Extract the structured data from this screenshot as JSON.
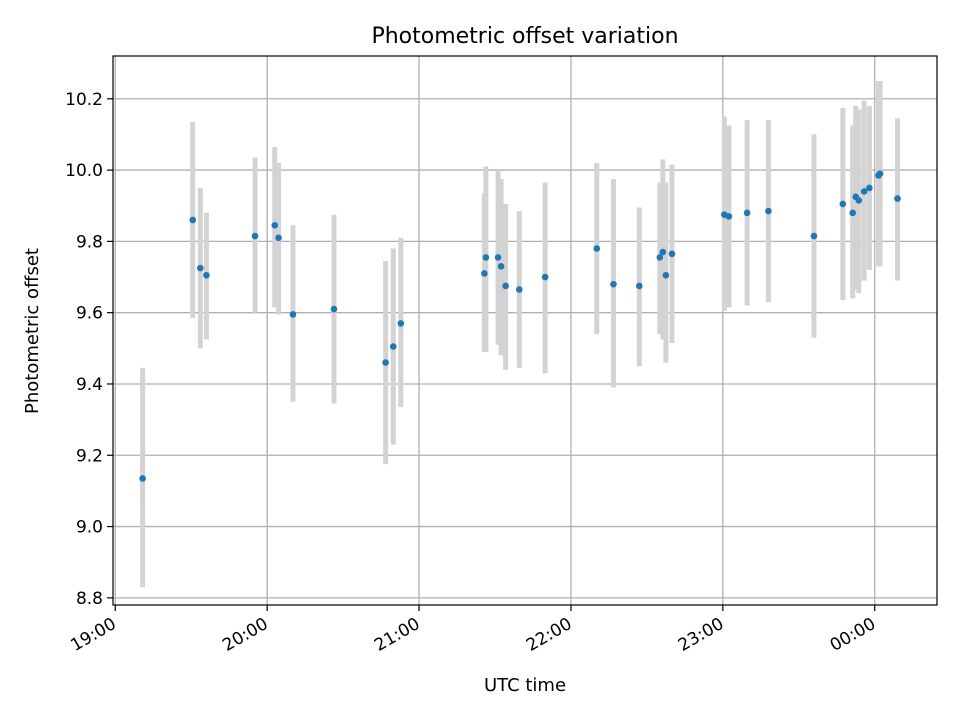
{
  "chart_data": {
    "type": "scatter",
    "title": "Photometric offset variation",
    "xlabel": "UTC time",
    "ylabel": "Photometric offset",
    "x_unit": "hours (UTC, continuing past midnight)",
    "xlim": [
      18.985,
      24.41
    ],
    "ylim": [
      8.78,
      10.32
    ],
    "x_ticks": [
      {
        "value": 19,
        "label": "19:00"
      },
      {
        "value": 20,
        "label": "20:00"
      },
      {
        "value": 21,
        "label": "21:00"
      },
      {
        "value": 22,
        "label": "22:00"
      },
      {
        "value": 23,
        "label": "23:00"
      },
      {
        "value": 24,
        "label": "00:00"
      }
    ],
    "y_ticks": [
      {
        "value": 8.8,
        "label": "8.8"
      },
      {
        "value": 9.0,
        "label": "9.0"
      },
      {
        "value": 9.2,
        "label": "9.2"
      },
      {
        "value": 9.4,
        "label": "9.4"
      },
      {
        "value": 9.6,
        "label": "9.6"
      },
      {
        "value": 9.8,
        "label": "9.8"
      },
      {
        "value": 10.0,
        "label": "10.0"
      },
      {
        "value": 10.2,
        "label": "10.2"
      }
    ],
    "grid": true,
    "points": [
      {
        "x": 19.18,
        "y": 9.135,
        "lo": 8.83,
        "hi": 9.445
      },
      {
        "x": 19.51,
        "y": 9.86,
        "lo": 9.585,
        "hi": 10.135
      },
      {
        "x": 19.56,
        "y": 9.725,
        "lo": 9.5,
        "hi": 9.95
      },
      {
        "x": 19.6,
        "y": 9.705,
        "lo": 9.525,
        "hi": 9.88
      },
      {
        "x": 19.92,
        "y": 9.815,
        "lo": 9.6,
        "hi": 10.035
      },
      {
        "x": 20.05,
        "y": 9.845,
        "lo": 9.615,
        "hi": 10.065
      },
      {
        "x": 20.075,
        "y": 9.81,
        "lo": 9.595,
        "hi": 10.02
      },
      {
        "x": 20.17,
        "y": 9.595,
        "lo": 9.35,
        "hi": 9.845
      },
      {
        "x": 20.44,
        "y": 9.61,
        "lo": 9.345,
        "hi": 9.875
      },
      {
        "x": 20.78,
        "y": 9.46,
        "lo": 9.175,
        "hi": 9.745
      },
      {
        "x": 20.83,
        "y": 9.505,
        "lo": 9.23,
        "hi": 9.78
      },
      {
        "x": 20.88,
        "y": 9.57,
        "lo": 9.335,
        "hi": 9.81
      },
      {
        "x": 21.43,
        "y": 9.71,
        "lo": 9.49,
        "hi": 9.935
      },
      {
        "x": 21.44,
        "y": 9.755,
        "lo": 9.49,
        "hi": 10.01
      },
      {
        "x": 21.52,
        "y": 9.755,
        "lo": 9.51,
        "hi": 10.0
      },
      {
        "x": 21.54,
        "y": 9.73,
        "lo": 9.48,
        "hi": 9.975
      },
      {
        "x": 21.57,
        "y": 9.675,
        "lo": 9.44,
        "hi": 9.905
      },
      {
        "x": 21.66,
        "y": 9.665,
        "lo": 9.445,
        "hi": 9.885
      },
      {
        "x": 21.83,
        "y": 9.7,
        "lo": 9.43,
        "hi": 9.965
      },
      {
        "x": 22.17,
        "y": 9.78,
        "lo": 9.54,
        "hi": 10.02
      },
      {
        "x": 22.28,
        "y": 9.68,
        "lo": 9.39,
        "hi": 9.975
      },
      {
        "x": 22.45,
        "y": 9.675,
        "lo": 9.45,
        "hi": 9.895
      },
      {
        "x": 22.585,
        "y": 9.755,
        "lo": 9.54,
        "hi": 9.965
      },
      {
        "x": 22.605,
        "y": 9.77,
        "lo": 9.525,
        "hi": 10.03
      },
      {
        "x": 22.625,
        "y": 9.705,
        "lo": 9.46,
        "hi": 9.965
      },
      {
        "x": 22.665,
        "y": 9.765,
        "lo": 9.515,
        "hi": 10.015
      },
      {
        "x": 23.01,
        "y": 9.875,
        "lo": 9.605,
        "hi": 10.15
      },
      {
        "x": 23.04,
        "y": 9.87,
        "lo": 9.615,
        "hi": 10.125
      },
      {
        "x": 23.16,
        "y": 9.88,
        "lo": 9.62,
        "hi": 10.14
      },
      {
        "x": 23.3,
        "y": 9.885,
        "lo": 9.63,
        "hi": 10.14
      },
      {
        "x": 23.6,
        "y": 9.815,
        "lo": 9.53,
        "hi": 10.1
      },
      {
        "x": 23.79,
        "y": 9.905,
        "lo": 9.635,
        "hi": 10.175
      },
      {
        "x": 23.855,
        "y": 9.88,
        "lo": 9.64,
        "hi": 10.125
      },
      {
        "x": 23.875,
        "y": 9.925,
        "lo": 9.665,
        "hi": 10.18
      },
      {
        "x": 23.895,
        "y": 9.915,
        "lo": 9.655,
        "hi": 10.17
      },
      {
        "x": 23.93,
        "y": 9.94,
        "lo": 9.69,
        "hi": 10.195
      },
      {
        "x": 23.965,
        "y": 9.95,
        "lo": 9.72,
        "hi": 10.18
      },
      {
        "x": 24.025,
        "y": 9.985,
        "lo": 9.73,
        "hi": 10.25
      },
      {
        "x": 24.035,
        "y": 9.99,
        "lo": 9.73,
        "hi": 10.25
      },
      {
        "x": 24.15,
        "y": 9.92,
        "lo": 9.69,
        "hi": 10.145
      }
    ],
    "colors": {
      "point": "#1f77b4",
      "errorbar": "#d3d3d3",
      "grid": "#b0b0b0",
      "axes": "#000000"
    }
  }
}
